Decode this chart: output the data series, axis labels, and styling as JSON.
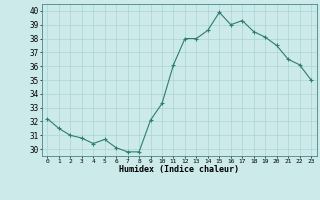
{
  "x": [
    0,
    1,
    2,
    3,
    4,
    5,
    6,
    7,
    8,
    9,
    10,
    11,
    12,
    13,
    14,
    15,
    16,
    17,
    18,
    19,
    20,
    21,
    22,
    23
  ],
  "y": [
    32.2,
    31.5,
    31.0,
    30.8,
    30.4,
    30.7,
    30.1,
    29.8,
    29.8,
    32.1,
    33.3,
    36.1,
    38.0,
    38.0,
    38.6,
    39.9,
    39.0,
    39.3,
    38.5,
    38.1,
    37.5,
    36.5,
    36.1,
    35.0
  ],
  "line_color": "#2e7d6e",
  "marker": "+",
  "bg_color": "#cceaea",
  "grid_color": "#aad4d4",
  "xlabel": "Humidex (Indice chaleur)",
  "ylabel_ticks": [
    30,
    31,
    32,
    33,
    34,
    35,
    36,
    37,
    38,
    39,
    40
  ],
  "xlim": [
    -0.5,
    23.5
  ],
  "ylim": [
    29.5,
    40.5
  ]
}
